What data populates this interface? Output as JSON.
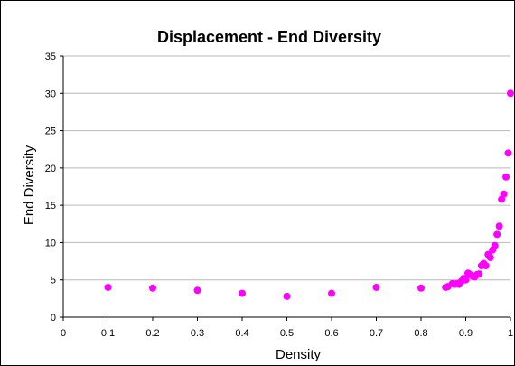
{
  "chart_data": {
    "type": "scatter",
    "title": "Displacement - End Diversity",
    "xlabel": "Density",
    "ylabel": "End Diversity",
    "xlim": [
      0,
      1
    ],
    "ylim": [
      0,
      35
    ],
    "xticks": [
      "0",
      "0.1",
      "0.2",
      "0.3",
      "0.4",
      "0.5",
      "0.6",
      "0.7",
      "0.8",
      "0.9",
      "1"
    ],
    "yticks": [
      "0",
      "5",
      "10",
      "15",
      "20",
      "25",
      "30",
      "35"
    ],
    "grid": "horizontal",
    "legend": "none",
    "marker_color": "#ff00ff",
    "points": [
      [
        0.1,
        4.0
      ],
      [
        0.2,
        3.9
      ],
      [
        0.3,
        3.6
      ],
      [
        0.4,
        3.2
      ],
      [
        0.5,
        2.8
      ],
      [
        0.6,
        3.2
      ],
      [
        0.7,
        4.0
      ],
      [
        0.8,
        3.9
      ],
      [
        0.855,
        4.0
      ],
      [
        0.86,
        4.1
      ],
      [
        0.87,
        4.5
      ],
      [
        0.875,
        4.4
      ],
      [
        0.88,
        4.5
      ],
      [
        0.885,
        4.4
      ],
      [
        0.89,
        4.8
      ],
      [
        0.895,
        5.2
      ],
      [
        0.9,
        5.0
      ],
      [
        0.905,
        5.9
      ],
      [
        0.91,
        5.7
      ],
      [
        0.915,
        5.5
      ],
      [
        0.92,
        5.4
      ],
      [
        0.925,
        5.7
      ],
      [
        0.93,
        5.8
      ],
      [
        0.935,
        6.9
      ],
      [
        0.94,
        7.2
      ],
      [
        0.945,
        6.9
      ],
      [
        0.95,
        8.4
      ],
      [
        0.955,
        8.0
      ],
      [
        0.96,
        9.0
      ],
      [
        0.965,
        9.6
      ],
      [
        0.97,
        11.1
      ],
      [
        0.975,
        12.2
      ],
      [
        0.98,
        15.8
      ],
      [
        0.985,
        16.5
      ],
      [
        0.99,
        18.8
      ],
      [
        0.995,
        22.0
      ],
      [
        1.0,
        30.0
      ]
    ]
  }
}
